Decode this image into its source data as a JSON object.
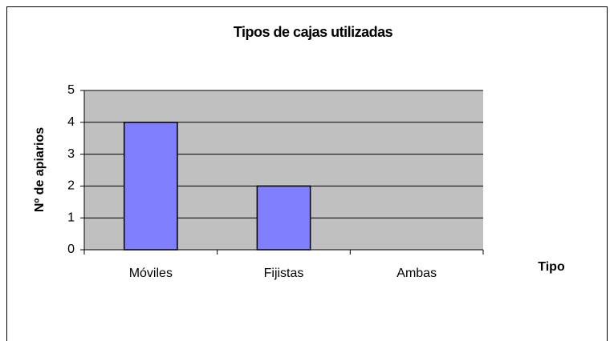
{
  "chart_data": {
    "type": "bar",
    "title": "Tipos de cajas utilizadas",
    "x_label": "Tipo",
    "y_label": "Nº de apiarios",
    "categories": [
      "Móviles",
      "Fijistas",
      "Ambas"
    ],
    "values": [
      4,
      2,
      0
    ],
    "color": "#8080ff",
    "ylim": [
      0,
      5
    ],
    "yticks": [
      0,
      1,
      2,
      3,
      4,
      5
    ],
    "grid": true
  }
}
